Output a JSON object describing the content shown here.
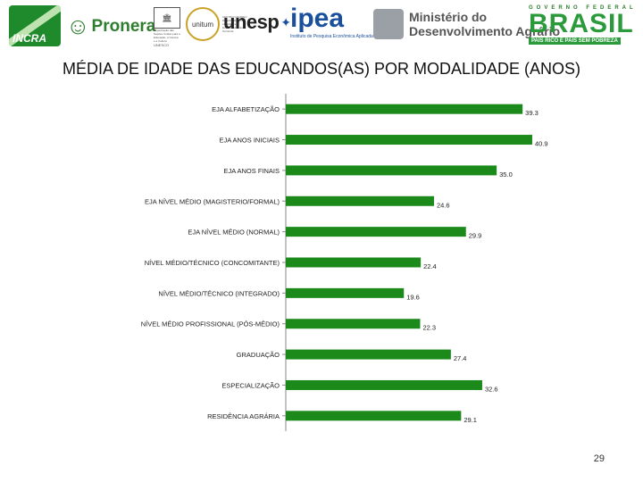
{
  "logos": {
    "incra": "INCRA",
    "pronera": "Pronera",
    "unesco": "UNESCO",
    "unesco_caption": "Organização das Nações Unidas para a Educação, a Ciência e a Cultura",
    "unitum": "unitum",
    "unitum_caption": "CENTRO GRAMSCI DE ESTUDOS DE LIDERES e Desenvolvimento Territorial",
    "unesp": "unesp",
    "ipea": "ipea",
    "ipea_caption": "Instituto de Pesquisa Econômica Aplicada",
    "mda_line1": "Ministério do",
    "mda_line2": "Desenvolvimento Agrário",
    "brasil_top": "GOVERNO FEDERAL",
    "brasil": "BRASIL",
    "brasil_slogan": "PAÍS RICO É PAÍS SEM POBREZA"
  },
  "page_number": "29",
  "chart_data": {
    "type": "bar",
    "orientation": "horizontal",
    "title": "MÉDIA DE IDADE DAS EDUCANDOS(AS) POR MODALIDADE (ANOS)",
    "categories": [
      "EJA ALFABETIZAÇÃO",
      "EJA ANOS INICIAIS",
      "EJA ANOS FINAIS",
      "EJA NÍVEL MÉDIO (MAGISTERIO/FORMAL)",
      "EJA NÍVEL MÉDIO (NORMAL)",
      "NÍVEL MÉDIO/TÉCNICO (CONCOMITANTE)",
      "NÍVEL MÉDIO/TÉCNICO (INTEGRADO)",
      "NÍVEL MÉDIO PROFISSIONAL (PÓS-MÉDIO)",
      "GRADUAÇÃO",
      "ESPECIALIZAÇÃO",
      "RESIDÊNCIA AGRÁRIA"
    ],
    "values": [
      39.3,
      40.9,
      35.0,
      24.6,
      29.9,
      22.4,
      19.6,
      22.3,
      27.4,
      32.6,
      29.1
    ],
    "value_labels": [
      "39.3",
      "40.9",
      "35.0",
      "24.6",
      "29.9",
      "22.4",
      "19.6",
      "22.3",
      "27.4",
      "32.6",
      "29.1"
    ],
    "xlim": [
      0,
      41.5
    ],
    "bar_color": "#1b8a1b",
    "grid": false
  }
}
